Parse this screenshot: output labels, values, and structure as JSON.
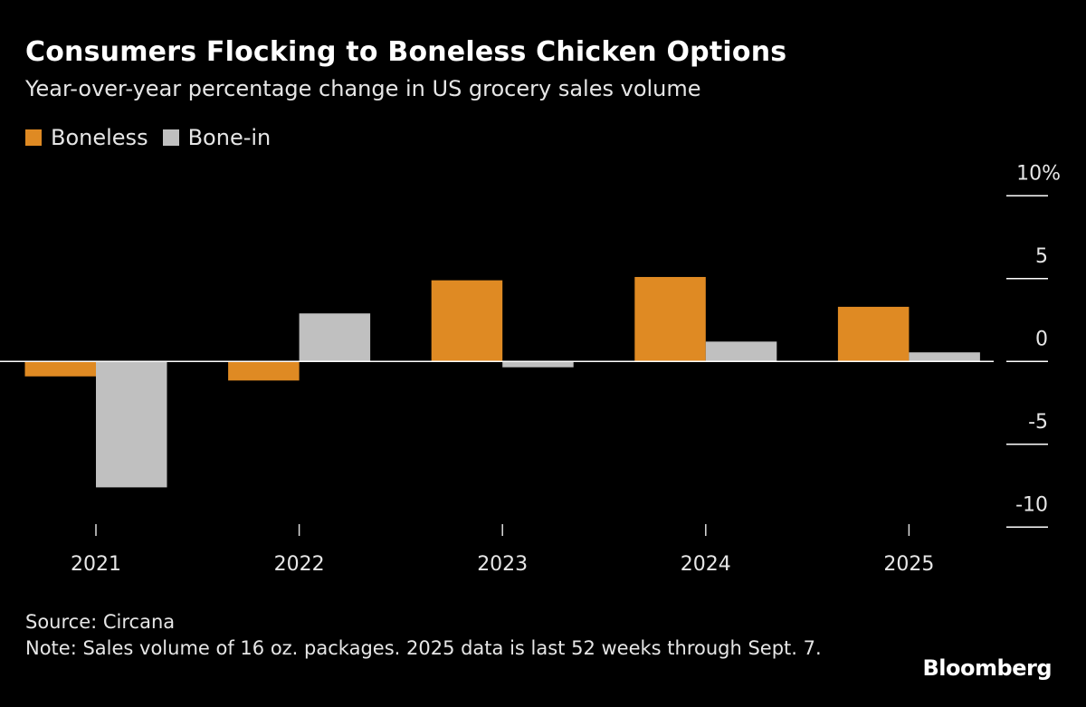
{
  "chart_data": {
    "type": "bar",
    "title": "Consumers Flocking to Boneless Chicken Options",
    "subtitle": "Year-over-year percentage change in US grocery sales volume",
    "categories": [
      "2021",
      "2022",
      "2023",
      "2024",
      "2025"
    ],
    "series": [
      {
        "name": "Boneless",
        "color": "#df8a23",
        "values": [
          -0.9,
          -1.15,
          4.9,
          5.1,
          3.3
        ]
      },
      {
        "name": "Bone-in",
        "color": "#c0c0c0",
        "values": [
          -7.6,
          2.9,
          -0.35,
          1.2,
          0.55
        ]
      }
    ],
    "ylim": [
      -10,
      10
    ],
    "yticks": [
      10,
      5,
      0,
      -5,
      -10
    ],
    "ytick_labels": [
      "10%",
      "5",
      "0",
      "-5",
      "-10"
    ],
    "y_axis_side": "right",
    "legend_placement": "top-left",
    "grid": false
  },
  "footer": {
    "source": "Source: Circana",
    "note": "Note: Sales volume of 16 oz. packages. 2025 data is last 52 weeks through Sept. 7."
  },
  "logo": "Bloomberg",
  "background": "#000000"
}
